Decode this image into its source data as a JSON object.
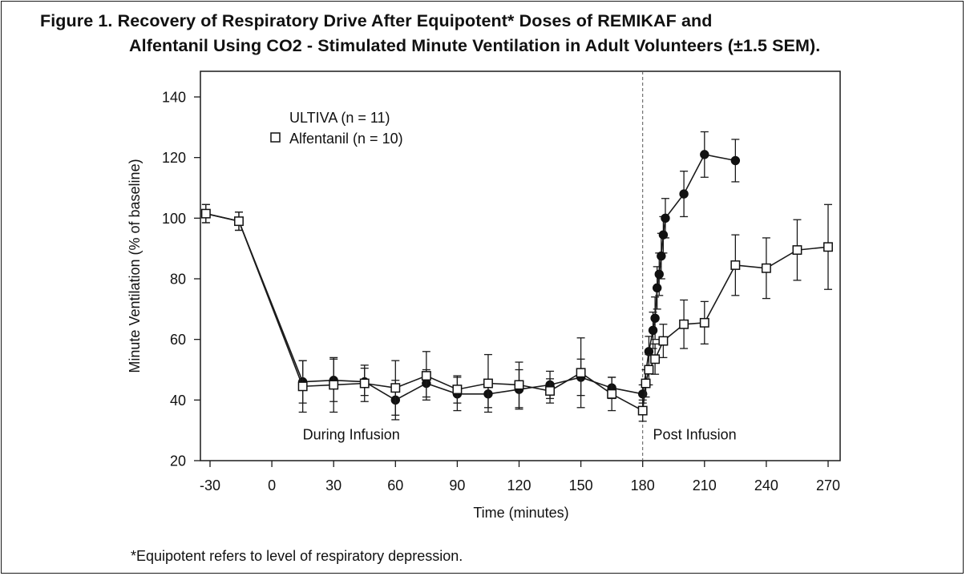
{
  "title_line1": "Figure 1. Recovery of Respiratory Drive After Equipotent* Doses of REMIKAF and",
  "title_line2": "Alfentanil Using CO2 - Stimulated Minute Ventilation in Adult Volunteers (±1.5 SEM).",
  "footnote": "*Equipotent refers to level of respiratory depression.",
  "chart_data": {
    "type": "line",
    "xlabel": "Time (minutes)",
    "ylabel": "Minute Ventilation (% of baseline)",
    "xlim": [
      -35,
      275
    ],
    "ylim": [
      20,
      150
    ],
    "x_ticks": [
      -30,
      0,
      30,
      60,
      90,
      120,
      150,
      180,
      210,
      240,
      270
    ],
    "x_tick_labels": [
      "-30",
      "0",
      "30",
      "60",
      "90",
      "120",
      "150",
      "180",
      "210",
      "240",
      "270"
    ],
    "y_ticks": [
      20,
      40,
      60,
      80,
      100,
      120,
      140
    ],
    "y_tick_labels": [
      "20",
      "40",
      "60",
      "80",
      "100",
      "120",
      "140"
    ],
    "grid": false,
    "legend_position": "top-left",
    "divider_x": 180,
    "annotations": {
      "during": {
        "text": "During Infusion",
        "x": 15,
        "y": 27
      },
      "post": {
        "text": "Post Infusion",
        "x": 185,
        "y": 27
      }
    },
    "series": [
      {
        "name": "ULTIVA (n = 11)",
        "marker": "filled-circle",
        "x": [
          -32,
          -16,
          15,
          30,
          45,
          60,
          75,
          90,
          105,
          120,
          135,
          150,
          165,
          180,
          183,
          185,
          186,
          187,
          188,
          189,
          190,
          191,
          200,
          210,
          225
        ],
        "y": [
          101.5,
          99,
          46,
          46.5,
          46,
          40,
          45.5,
          42,
          42,
          43.5,
          45,
          47.5,
          44,
          42,
          56,
          63,
          67,
          77,
          81.5,
          87.5,
          94.5,
          100,
          108,
          121,
          119
        ],
        "err": [
          3,
          3,
          7,
          7,
          4.5,
          6.5,
          4.5,
          5.5,
          4.5,
          6.5,
          4.5,
          6,
          3.5,
          3,
          5,
          6,
          7,
          7,
          7,
          7.5,
          6,
          6.5,
          7.5,
          7.5,
          7
        ]
      },
      {
        "name": "Alfentanil (n = 10)",
        "marker": "open-square",
        "x": [
          -32,
          -16,
          15,
          30,
          45,
          60,
          75,
          90,
          105,
          120,
          135,
          150,
          165,
          180,
          181.5,
          183,
          186,
          190,
          200,
          210,
          225,
          240,
          255,
          270
        ],
        "y": [
          101.5,
          99,
          44.5,
          45,
          45.5,
          44,
          48,
          43.5,
          45.5,
          45,
          43,
          49,
          42,
          36.5,
          45.5,
          50,
          53.5,
          59.5,
          65,
          65.5,
          84.5,
          83.5,
          89.5,
          90.5
        ],
        "err": [
          3,
          3,
          8.5,
          9,
          6,
          9,
          8,
          4.5,
          9.5,
          7.5,
          4,
          11.5,
          5.5,
          3.5,
          4.5,
          5,
          5,
          5.5,
          8,
          7,
          10,
          10,
          10,
          14
        ]
      }
    ]
  }
}
